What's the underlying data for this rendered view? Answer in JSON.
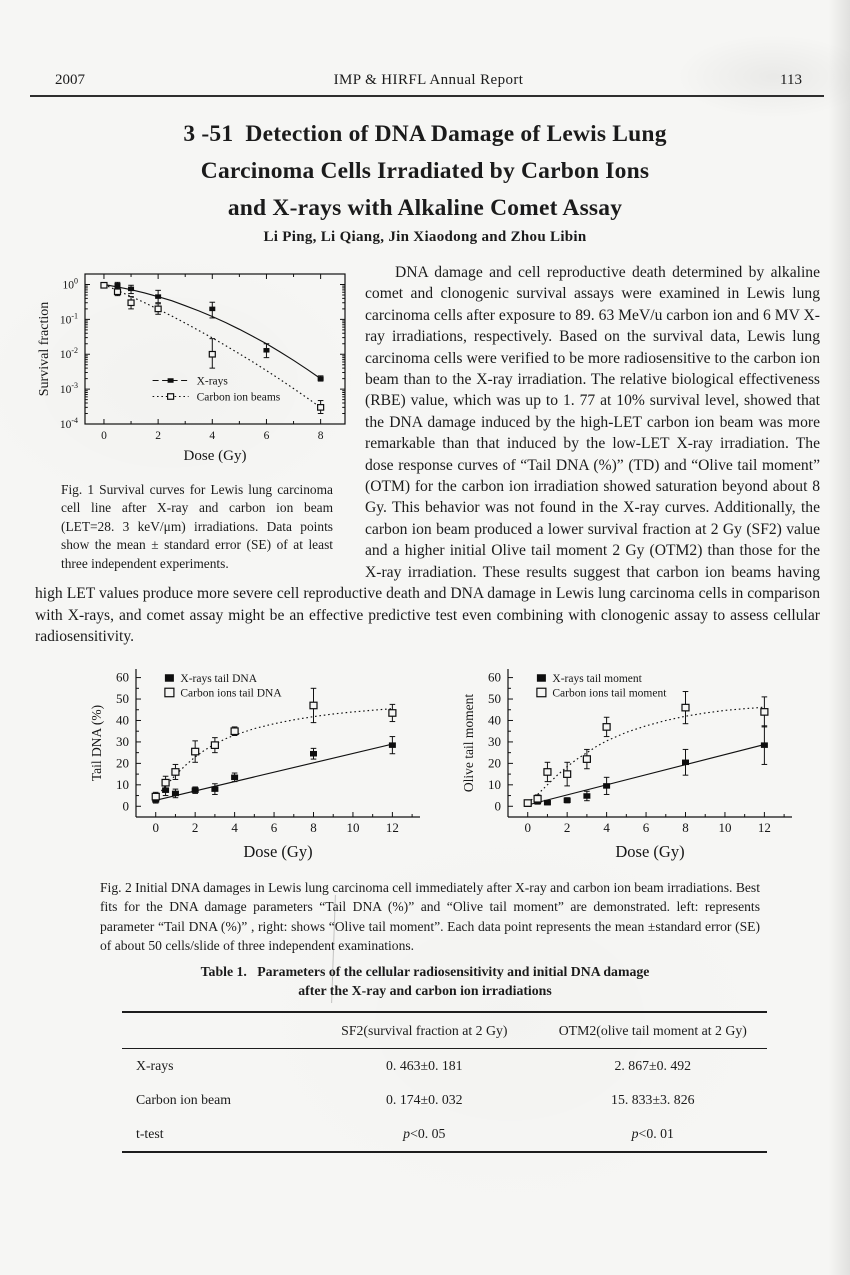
{
  "header": {
    "year": "2007",
    "journal": "IMP & HIRFL Annual Report",
    "page_number": "113"
  },
  "article": {
    "title_lines": [
      "3 -51  Detection of DNA Damage of Lewis Lung",
      "Carcinoma Cells Irradiated by Carbon Ions",
      "and X-rays with Alkaline Comet Assay"
    ],
    "authors": "Li Ping, Li Qiang, Jin Xiaodong and Zhou Libin",
    "abstract": "DNA damage and cell reproductive death determined by alkaline comet and clonogenic survival assays were examined in Lewis lung carcinoma cells after exposure to 89. 63 MeV/u carbon ion and 6 MV X-ray irradiations, respectively. Based on the survival data, Lewis lung carcinoma cells were verified to be more radiosensitive to the carbon ion beam than to the X-ray irradiation. The relative biological effectiveness (RBE) value, which was up to 1. 77 at 10% survival level, showed that the DNA damage induced by the high-LET carbon ion beam was more remarkable than that induced by the low-LET X-ray irradiation. The dose response curves of “Tail DNA (%)” (TD) and “Olive tail moment” (OTM) for the carbon ion irradiation showed saturation beyond about 8 Gy. This behavior was not found in the X-ray curves. Additionally, the carbon ion beam produced a lower survival fraction at 2 Gy (SF2) value and a higher initial Olive tail moment 2 Gy (OTM2) than those for the X-ray irradiation. These results suggest that carbon ion beams having high LET values produce more severe cell reproductive death and DNA damage in Lewis lung carcinoma cells in comparison with X-rays, and comet assay might be an effective predictive test even combining with clonogenic assay to assess cellular radiosensitivity."
  },
  "figure1": {
    "caption": "Fig. 1  Survival curves for Lewis lung carcinoma cell line after X-ray and carbon ion beam (LET=28. 3 keV/μm) irradiations. Data points show the mean ± standard error (SE) of at least three independent experiments."
  },
  "figure2": {
    "caption": "Fig. 2  Initial DNA damages in Lewis lung carcinoma cell immediately after X-ray and carbon ion beam irradiations. Best fits for the DNA damage parameters “Tail DNA (%)” and “Olive tail moment” are demonstrated. left: represents parameter “Tail DNA (%)” , right: shows “Olive tail moment”. Each data point represents the mean ±standard error (SE) of about 50 cells/slide of three independent examinations."
  },
  "table1": {
    "title_line1": "Table 1.   Parameters of the cellular radiosensitivity and initial DNA damage",
    "title_line2": "after the X-ray and carbon ion irradiations",
    "columns": [
      "",
      "SF2(survival fraction at 2 Gy)",
      "OTM2(olive tail moment at 2 Gy)"
    ],
    "rows": [
      [
        "X-rays",
        "0. 463±0. 181",
        "2. 867±0. 492"
      ],
      [
        "Carbon ion beam",
        "0. 174±0. 032",
        "15. 833±3. 826"
      ],
      [
        "t-test",
        "p<0. 05",
        "p<0. 01"
      ]
    ]
  },
  "chart_data": [
    {
      "id": "fig1",
      "type": "scatter",
      "title": "",
      "xlabel": "Dose (Gy)",
      "ylabel": "Survival fraction",
      "xlim": [
        -0.7,
        8.9
      ],
      "xticks": [
        0,
        2,
        4,
        6,
        8
      ],
      "xminor": [
        1,
        3,
        5,
        7
      ],
      "yscale": "log",
      "ylim": [
        0.0001,
        2
      ],
      "yticks": [
        {
          "v": 1,
          "exp": "0"
        },
        {
          "v": 0.1,
          "exp": "-1"
        },
        {
          "v": 0.01,
          "exp": "-2"
        },
        {
          "v": 0.001,
          "exp": "-3"
        },
        {
          "v": 0.0001,
          "exp": "-4"
        }
      ],
      "frame": "box",
      "grid": false,
      "legend_position": "lower-left-inside",
      "series": [
        {
          "name": "X-rays",
          "marker": "filled-square",
          "line": "solid",
          "points": [
            [
              0.5,
              0.95,
              0.8,
              1.15
            ],
            [
              1,
              0.75,
              0.55,
              0.95
            ],
            [
              2,
              0.45,
              0.3,
              0.68
            ],
            [
              4,
              0.2,
              0.11,
              0.31
            ],
            [
              6,
              0.013,
              0.008,
              0.02
            ],
            [
              8,
              0.002,
              0.0017,
              0.0024
            ]
          ],
          "curve": [
            [
              0,
              1
            ],
            [
              0.5,
              0.855
            ],
            [
              1,
              0.71
            ],
            [
              1.5,
              0.575
            ],
            [
              2,
              0.446
            ],
            [
              2.5,
              0.342
            ],
            [
              3,
              0.247
            ],
            [
              3.5,
              0.175
            ],
            [
              4,
              0.121
            ],
            [
              4.5,
              0.081
            ],
            [
              5,
              0.052
            ],
            [
              5.5,
              0.0325
            ],
            [
              6,
              0.02
            ],
            [
              6.5,
              0.0117
            ],
            [
              7,
              0.0067
            ],
            [
              7.5,
              0.0037
            ],
            [
              8,
              0.002
            ]
          ]
        },
        {
          "name": "Carbon ion beams",
          "marker": "open-square",
          "line": "dotted",
          "points": [
            [
              0,
              0.95,
              0.85,
              1.1
            ],
            [
              0.5,
              0.62,
              0.48,
              0.8
            ],
            [
              1,
              0.3,
              0.2,
              0.45
            ],
            [
              2,
              0.2,
              0.14,
              0.28
            ],
            [
              4,
              0.01,
              0.004,
              0.028
            ],
            [
              8,
              0.0003,
              0.0002,
              0.00047
            ]
          ],
          "curve": [
            [
              0,
              1
            ],
            [
              0.5,
              0.67
            ],
            [
              1,
              0.457
            ],
            [
              1.5,
              0.3
            ],
            [
              2,
              0.196
            ],
            [
              2.5,
              0.125
            ],
            [
              3,
              0.078
            ],
            [
              3.5,
              0.048
            ],
            [
              4,
              0.0294
            ],
            [
              4.5,
              0.0176
            ],
            [
              5,
              0.0103
            ],
            [
              5.5,
              0.006
            ],
            [
              6,
              0.0034
            ],
            [
              6.5,
              0.0019
            ],
            [
              7,
              0.00104
            ],
            [
              7.5,
              0.00056
            ],
            [
              8,
              0.0003
            ]
          ]
        }
      ]
    },
    {
      "id": "fig2a",
      "type": "scatter",
      "title": "",
      "xlabel": "Dose (Gy)",
      "ylabel": "Tail DNA (%)",
      "xlim": [
        -1,
        13.4
      ],
      "xticks": [
        0,
        2,
        4,
        6,
        8,
        10,
        12
      ],
      "xminor": [
        1,
        3,
        5,
        7,
        9,
        11,
        13
      ],
      "yscale": "linear",
      "ylim": [
        -5,
        64
      ],
      "yticks": [
        {
          "v": 0,
          "label": "0"
        },
        {
          "v": 10,
          "label": "10"
        },
        {
          "v": 20,
          "label": "20"
        },
        {
          "v": 30,
          "label": "30"
        },
        {
          "v": 40,
          "label": "40"
        },
        {
          "v": 50,
          "label": "50"
        },
        {
          "v": 60,
          "label": "60"
        }
      ],
      "yminor": [
        5,
        15,
        25,
        35,
        45,
        55
      ],
      "frame": "axes",
      "grid": false,
      "legend_position": "upper-left-inside",
      "series": [
        {
          "name": "X-rays tail DNA",
          "marker": "filled-square",
          "line": "solid",
          "points": [
            [
              0,
              3,
              1.5
            ],
            [
              0.5,
              7.5,
              2.5
            ],
            [
              1,
              6,
              2
            ],
            [
              2,
              7.5,
              1.5
            ],
            [
              3,
              8,
              2.5
            ],
            [
              4,
              13.5,
              2
            ],
            [
              8,
              24.5,
              2.5
            ],
            [
              12,
              28.5,
              4
            ]
          ],
          "curve": [
            [
              0,
              2.8
            ],
            [
              12,
              29
            ]
          ]
        },
        {
          "name": "Carbon ions tail DNA",
          "marker": "open-square",
          "line": "dotted",
          "points": [
            [
              0,
              4.5,
              2
            ],
            [
              0.5,
              11,
              3
            ],
            [
              1,
              16,
              3.5
            ],
            [
              2,
              25.5,
              5
            ],
            [
              3,
              28.5,
              3.5
            ],
            [
              4,
              35,
              2
            ],
            [
              8,
              47,
              8
            ],
            [
              12,
              43.5,
              4
            ]
          ],
          "curve": [
            [
              0,
              4
            ],
            [
              0.5,
              9.5
            ],
            [
              1,
              14.5
            ],
            [
              1.5,
              19
            ],
            [
              2,
              23
            ],
            [
              2.5,
              26.3
            ],
            [
              3,
              29
            ],
            [
              3.5,
              31.3
            ],
            [
              4,
              33.2
            ],
            [
              5,
              36.2
            ],
            [
              6,
              38.5
            ],
            [
              7,
              40.3
            ],
            [
              8,
              41.8
            ],
            [
              9,
              43
            ],
            [
              10,
              44
            ],
            [
              11,
              44.8
            ],
            [
              12,
              45.5
            ]
          ]
        }
      ]
    },
    {
      "id": "fig2b",
      "type": "scatter",
      "title": "",
      "xlabel": "Dose (Gy)",
      "ylabel": "Olive tail moment",
      "xlim": [
        -1,
        13.4
      ],
      "xticks": [
        0,
        2,
        4,
        6,
        8,
        10,
        12
      ],
      "xminor": [
        1,
        3,
        5,
        7,
        9,
        11,
        13
      ],
      "yscale": "linear",
      "ylim": [
        -5,
        64
      ],
      "yticks": [
        {
          "v": 0,
          "label": "0"
        },
        {
          "v": 10,
          "label": "10"
        },
        {
          "v": 20,
          "label": "20"
        },
        {
          "v": 30,
          "label": "30"
        },
        {
          "v": 40,
          "label": "40"
        },
        {
          "v": 50,
          "label": "50"
        },
        {
          "v": 60,
          "label": "60"
        }
      ],
      "yminor": [
        5,
        15,
        25,
        35,
        45,
        55
      ],
      "frame": "axes",
      "grid": false,
      "legend_position": "upper-left-inside",
      "series": [
        {
          "name": "X-rays tail moment",
          "marker": "filled-square",
          "line": "solid",
          "points": [
            [
              0,
              1,
              0.8
            ],
            [
              0.5,
              2.2,
              1.2
            ],
            [
              1,
              1.7,
              1
            ],
            [
              2,
              2.8,
              1.2
            ],
            [
              3,
              4.8,
              2.2
            ],
            [
              4,
              9.5,
              4
            ],
            [
              8,
              20.5,
              6
            ],
            [
              12,
              28.5,
              9
            ]
          ],
          "curve": [
            [
              0,
              0.6
            ],
            [
              12,
              28.8
            ]
          ]
        },
        {
          "name": "Carbon ions tail moment",
          "marker": "open-square",
          "line": "dotted",
          "points": [
            [
              0,
              1.5,
              1
            ],
            [
              0.5,
              3.5,
              1.8
            ],
            [
              1,
              16,
              4.5
            ],
            [
              2,
              15,
              5.5
            ],
            [
              3,
              22,
              4.5
            ],
            [
              4,
              37,
              4.5
            ],
            [
              8,
              46,
              7.5
            ],
            [
              12,
              44,
              7
            ]
          ],
          "curve": [
            [
              0,
              1.5
            ],
            [
              0.5,
              5.5
            ],
            [
              1,
              10
            ],
            [
              1.5,
              14.5
            ],
            [
              2,
              18.5
            ],
            [
              2.5,
              22
            ],
            [
              3,
              25
            ],
            [
              3.5,
              28
            ],
            [
              4,
              30.5
            ],
            [
              5,
              34.5
            ],
            [
              6,
              37.5
            ],
            [
              7,
              40
            ],
            [
              8,
              42
            ],
            [
              9,
              43.5
            ],
            [
              10,
              44.7
            ],
            [
              11,
              45.5
            ],
            [
              12,
              46.2
            ]
          ]
        }
      ]
    }
  ]
}
